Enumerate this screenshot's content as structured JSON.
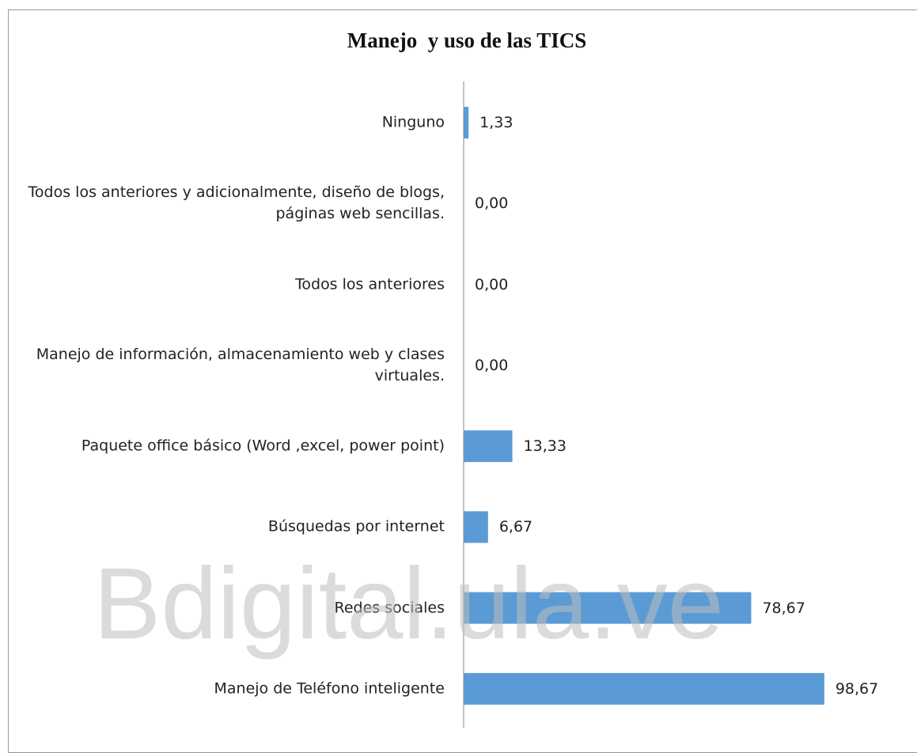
{
  "chart_data": {
    "type": "barh",
    "title": "Manejo  y uso de las TICS",
    "categories": [
      "Ninguno",
      "Todos los anteriores  y adicionalmente, diseño de blogs, páginas web sencillas.",
      "Todos los anteriores",
      "Manejo de información, almacenamiento web y clases virtuales.",
      "Paquete office básico (Word ,excel, power point)",
      "Búsquedas por internet",
      "Redes sociales",
      "Manejo de Teléfono inteligente"
    ],
    "values": [
      1.33,
      0,
      0,
      0,
      13.33,
      6.67,
      78.67,
      98.67
    ],
    "value_labels": [
      "1,33",
      "0,00",
      "0,00",
      "0,00",
      "13,33",
      "6,67",
      "78,67",
      "98,67"
    ],
    "color": "#5b9bd5",
    "xlim": [
      0,
      100
    ],
    "watermark": "Bdigital.ula.ve"
  }
}
